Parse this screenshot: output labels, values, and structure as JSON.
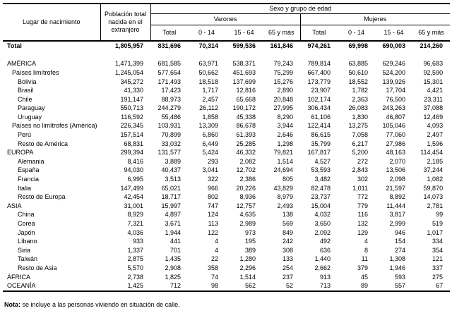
{
  "table": {
    "col_place": "Lugar de nacimiento",
    "col_population": "Población total nacida en el extranjero",
    "col_sex_age": "Sexo y grupo de edad",
    "group_males": "Varones",
    "group_females": "Mujeres",
    "sub_headers": [
      "Total",
      "0 - 14",
      "15 - 64",
      "65 y más"
    ],
    "rows": [
      {
        "label": "Total",
        "level": 0,
        "bold": true,
        "spacer_after": true,
        "values": [
          "1,805,957",
          "831,696",
          "70,314",
          "599,536",
          "161,846",
          "974,261",
          "69,998",
          "690,003",
          "214,260"
        ]
      },
      {
        "label": "AMÉRICA",
        "level": 0,
        "values": [
          "1,471,399",
          "681,585",
          "63,971",
          "538,371",
          "79,243",
          "789,814",
          "63,885",
          "629,246",
          "96,683"
        ]
      },
      {
        "label": "Países limítrofes",
        "level": 1,
        "values": [
          "1,245,054",
          "577,654",
          "50,662",
          "451,693",
          "75,299",
          "667,400",
          "50,610",
          "524,200",
          "92,590"
        ]
      },
      {
        "label": "Bolivia",
        "level": 2,
        "values": [
          "345,272",
          "171,493",
          "18,518",
          "137,699",
          "15,276",
          "173,779",
          "18,552",
          "139,926",
          "15,301"
        ]
      },
      {
        "label": "Brasil",
        "level": 2,
        "values": [
          "41,330",
          "17,423",
          "1,717",
          "12,816",
          "2,890",
          "23,907",
          "1,782",
          "17,704",
          "4,421"
        ]
      },
      {
        "label": "Chile",
        "level": 2,
        "values": [
          "191,147",
          "88,973",
          "2,457",
          "65,668",
          "20,848",
          "102,174",
          "2,363",
          "76,500",
          "23,311"
        ]
      },
      {
        "label": "Paraguay",
        "level": 2,
        "values": [
          "550,713",
          "244,279",
          "26,112",
          "190,172",
          "27,995",
          "306,434",
          "26,083",
          "243,263",
          "37,088"
        ]
      },
      {
        "label": "Uruguay",
        "level": 2,
        "values": [
          "116,592",
          "55,486",
          "1,858",
          "45,338",
          "8,290",
          "61,106",
          "1,830",
          "46,807",
          "12,469"
        ]
      },
      {
        "label": "Países no limítrofes (América)",
        "level": 1,
        "values": [
          "226,345",
          "103,931",
          "13,309",
          "86,678",
          "3,944",
          "122,414",
          "13,275",
          "105,046",
          "4,093"
        ]
      },
      {
        "label": "Perú",
        "level": 2,
        "values": [
          "157,514",
          "70,899",
          "6,860",
          "61,393",
          "2,646",
          "86,615",
          "7,058",
          "77,060",
          "2,497"
        ]
      },
      {
        "label": "Resto de América",
        "level": 2,
        "values": [
          "68,831",
          "33,032",
          "6,449",
          "25,285",
          "1,298",
          "35,799",
          "6,217",
          "27,986",
          "1,596"
        ]
      },
      {
        "label": "EUROPA",
        "level": 0,
        "values": [
          "299,394",
          "131,577",
          "5,424",
          "46,332",
          "79,821",
          "167,817",
          "5,200",
          "48,163",
          "114,454"
        ]
      },
      {
        "label": "Alemania",
        "level": 2,
        "values": [
          "8,416",
          "3,889",
          "293",
          "2,082",
          "1,514",
          "4,527",
          "272",
          "2,070",
          "2,185"
        ]
      },
      {
        "label": "España",
        "level": 2,
        "values": [
          "94,030",
          "40,437",
          "3,041",
          "12,702",
          "24,694",
          "53,593",
          "2,843",
          "13,506",
          "37,244"
        ]
      },
      {
        "label": "Francia",
        "level": 2,
        "values": [
          "6,995",
          "3,513",
          "322",
          "2,386",
          "805",
          "3,482",
          "302",
          "2,098",
          "1,082"
        ]
      },
      {
        "label": "Italia",
        "level": 2,
        "values": [
          "147,499",
          "65,021",
          "966",
          "20,226",
          "43,829",
          "82,478",
          "1,011",
          "21,597",
          "59,870"
        ]
      },
      {
        "label": "Resto de Europa",
        "level": 2,
        "values": [
          "42,454",
          "18,717",
          "802",
          "8,936",
          "8,979",
          "23,737",
          "772",
          "8,892",
          "14,073"
        ]
      },
      {
        "label": "ASIA",
        "level": 0,
        "values": [
          "31,001",
          "15,997",
          "747",
          "12,757",
          "2,493",
          "15,004",
          "779",
          "11,444",
          "2,781"
        ]
      },
      {
        "label": "China",
        "level": 2,
        "values": [
          "8,929",
          "4,897",
          "124",
          "4,635",
          "138",
          "4,032",
          "116",
          "3,817",
          "99"
        ]
      },
      {
        "label": "Corea",
        "level": 2,
        "values": [
          "7,321",
          "3,671",
          "113",
          "2,989",
          "569",
          "3,650",
          "132",
          "2,999",
          "519"
        ]
      },
      {
        "label": "Japón",
        "level": 2,
        "values": [
          "4,036",
          "1,944",
          "122",
          "973",
          "849",
          "2,092",
          "129",
          "946",
          "1,017"
        ]
      },
      {
        "label": "Líbano",
        "level": 2,
        "values": [
          "933",
          "441",
          "4",
          "195",
          "242",
          "492",
          "4",
          "154",
          "334"
        ]
      },
      {
        "label": "Siria",
        "level": 2,
        "values": [
          "1,337",
          "701",
          "4",
          "389",
          "308",
          "636",
          "8",
          "274",
          "354"
        ]
      },
      {
        "label": "Taiwán",
        "level": 2,
        "values": [
          "2,875",
          "1,435",
          "22",
          "1,280",
          "133",
          "1,440",
          "11",
          "1,308",
          "121"
        ]
      },
      {
        "label": "Resto de Asia",
        "level": 2,
        "values": [
          "5,570",
          "2,908",
          "358",
          "2,296",
          "254",
          "2,662",
          "379",
          "1,946",
          "337"
        ]
      },
      {
        "label": "ÁFRICA",
        "level": 0,
        "values": [
          "2,738",
          "1,825",
          "74",
          "1,514",
          "237",
          "913",
          "45",
          "593",
          "275"
        ]
      },
      {
        "label": "OCEANÍA",
        "level": 0,
        "values": [
          "1,425",
          "712",
          "98",
          "562",
          "52",
          "713",
          "89",
          "557",
          "67"
        ]
      }
    ]
  },
  "note": {
    "label": "Nota:",
    "text": "se incluye a las personas viviendo en situación de calle."
  }
}
